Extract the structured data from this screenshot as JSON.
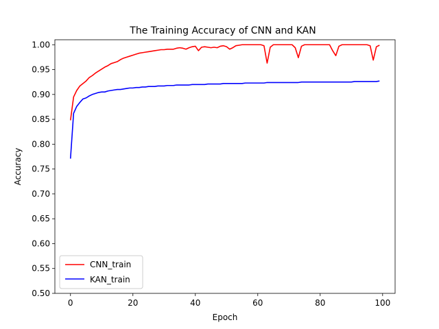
{
  "chart_data": {
    "type": "line",
    "title": "The Training Accuracy of CNN and KAN",
    "xlabel": "Epoch",
    "ylabel": "Accuracy",
    "xlim": [
      -5,
      104
    ],
    "ylim": [
      0.5,
      1.01
    ],
    "xticks": [
      0,
      20,
      40,
      60,
      80,
      100
    ],
    "xtick_labels": [
      "0",
      "20",
      "40",
      "60",
      "80",
      "100"
    ],
    "yticks": [
      0.5,
      0.55,
      0.6,
      0.65,
      0.7,
      0.75,
      0.8,
      0.85,
      0.9,
      0.95,
      1.0
    ],
    "ytick_labels": [
      "0.50",
      "0.55",
      "0.60",
      "0.65",
      "0.70",
      "0.75",
      "0.80",
      "0.85",
      "0.90",
      "0.95",
      "1.00"
    ],
    "grid": false,
    "legend_position": "lower-left",
    "x": [
      0,
      1,
      2,
      3,
      4,
      5,
      6,
      7,
      8,
      9,
      10,
      11,
      12,
      13,
      14,
      15,
      16,
      17,
      18,
      19,
      20,
      21,
      22,
      23,
      24,
      25,
      26,
      27,
      28,
      29,
      30,
      31,
      32,
      33,
      34,
      35,
      36,
      37,
      38,
      39,
      40,
      41,
      42,
      43,
      44,
      45,
      46,
      47,
      48,
      49,
      50,
      51,
      52,
      53,
      54,
      55,
      56,
      57,
      58,
      59,
      60,
      61,
      62,
      63,
      64,
      65,
      66,
      67,
      68,
      69,
      70,
      71,
      72,
      73,
      74,
      75,
      76,
      77,
      78,
      79,
      80,
      81,
      82,
      83,
      84,
      85,
      86,
      87,
      88,
      89,
      90,
      91,
      92,
      93,
      94,
      95,
      96,
      97,
      98,
      99
    ],
    "series": [
      {
        "name": "CNN_train",
        "color": "#ff0000",
        "values": [
          0.848,
          0.895,
          0.908,
          0.917,
          0.922,
          0.927,
          0.934,
          0.938,
          0.943,
          0.947,
          0.951,
          0.955,
          0.958,
          0.962,
          0.964,
          0.966,
          0.97,
          0.973,
          0.975,
          0.977,
          0.979,
          0.981,
          0.983,
          0.984,
          0.985,
          0.986,
          0.987,
          0.988,
          0.989,
          0.99,
          0.99,
          0.991,
          0.991,
          0.991,
          0.993,
          0.994,
          0.993,
          0.991,
          0.994,
          0.996,
          0.997,
          0.988,
          0.995,
          0.996,
          0.995,
          0.994,
          0.995,
          0.994,
          0.997,
          0.998,
          0.996,
          0.991,
          0.994,
          0.998,
          0.999,
          1.0,
          1.0,
          1.0,
          1.0,
          1.0,
          1.0,
          1.0,
          0.998,
          0.963,
          0.995,
          1.0,
          1.0,
          1.0,
          1.0,
          1.0,
          1.0,
          1.0,
          0.994,
          0.974,
          0.997,
          1.0,
          1.0,
          1.0,
          1.0,
          1.0,
          1.0,
          1.0,
          1.0,
          1.0,
          0.988,
          0.978,
          0.997,
          1.0,
          1.0,
          1.0,
          1.0,
          1.0,
          1.0,
          1.0,
          1.0,
          1.0,
          0.998,
          0.969,
          0.996,
          0.999
        ]
      },
      {
        "name": "KAN_train",
        "color": "#0000ff",
        "values": [
          0.771,
          0.862,
          0.876,
          0.884,
          0.891,
          0.893,
          0.897,
          0.9,
          0.902,
          0.904,
          0.905,
          0.905,
          0.907,
          0.908,
          0.909,
          0.91,
          0.91,
          0.911,
          0.912,
          0.913,
          0.913,
          0.914,
          0.914,
          0.915,
          0.915,
          0.916,
          0.916,
          0.916,
          0.917,
          0.917,
          0.917,
          0.918,
          0.918,
          0.918,
          0.919,
          0.919,
          0.919,
          0.919,
          0.919,
          0.92,
          0.92,
          0.92,
          0.92,
          0.92,
          0.921,
          0.921,
          0.921,
          0.921,
          0.921,
          0.922,
          0.922,
          0.922,
          0.922,
          0.922,
          0.922,
          0.922,
          0.923,
          0.923,
          0.923,
          0.923,
          0.923,
          0.923,
          0.923,
          0.924,
          0.924,
          0.924,
          0.924,
          0.924,
          0.924,
          0.924,
          0.924,
          0.924,
          0.924,
          0.924,
          0.925,
          0.925,
          0.925,
          0.925,
          0.925,
          0.925,
          0.925,
          0.925,
          0.925,
          0.925,
          0.925,
          0.925,
          0.925,
          0.925,
          0.925,
          0.925,
          0.925,
          0.926,
          0.926,
          0.926,
          0.926,
          0.926,
          0.926,
          0.926,
          0.926,
          0.927
        ]
      }
    ]
  }
}
